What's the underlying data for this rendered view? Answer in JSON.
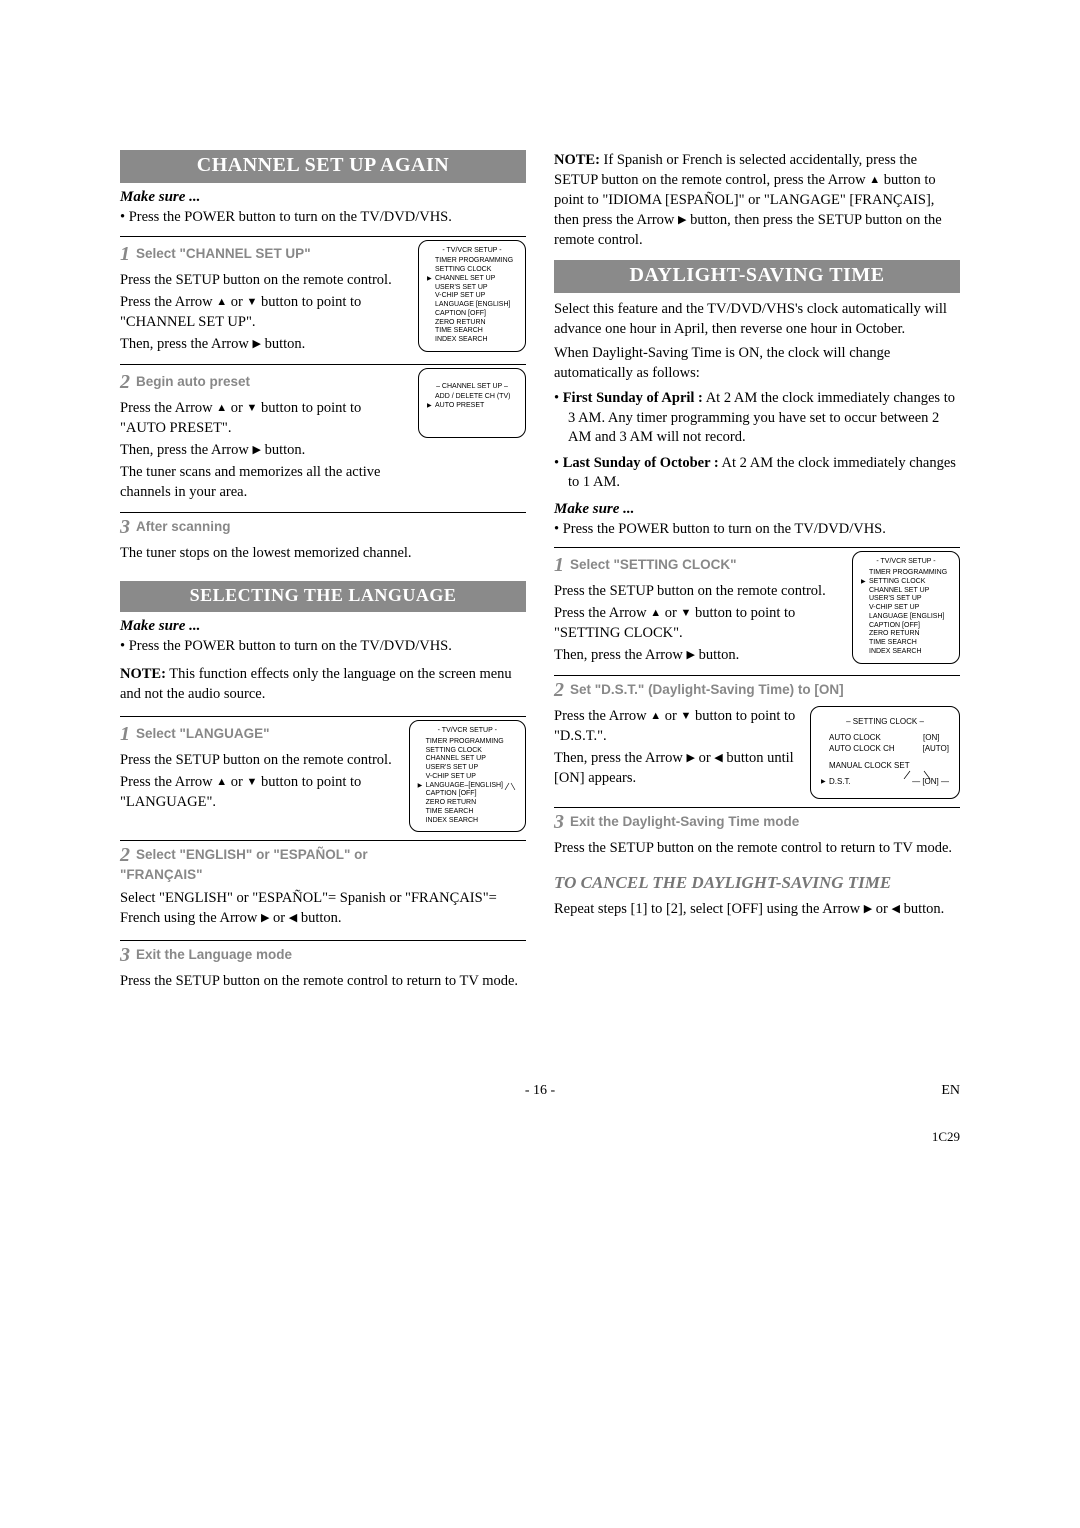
{
  "footer": {
    "pageNumber": "- 16 -",
    "lang": "EN",
    "code": "1C29"
  },
  "left": {
    "channelSetUp": {
      "header": "CHANNEL SET UP AGAIN",
      "makeSure": "Make sure ...",
      "bullet1": "Press the POWER button to turn on the TV/DVD/VHS.",
      "step1": {
        "num": "1",
        "title": "Select \"CHANNEL SET UP\"",
        "p1": "Press the SETUP button on the remote control.",
        "p2a": "Press the Arrow ",
        "p2b": " or ",
        "p2c": " button to point to \"CHANNEL SET UP\".",
        "p3a": "Then, press the Arrow ",
        "p3b": " button.",
        "menu": {
          "title": "- TV/VCR SETUP -",
          "items": [
            "TIMER PROGRAMMING",
            "SETTING CLOCK",
            "CHANNEL SET UP",
            "USER'S SET UP",
            "V-CHIP SET UP",
            "LANGUAGE   [ENGLISH]",
            "CAPTION   [OFF]",
            "ZERO RETURN",
            "TIME SEARCH",
            "INDEX SEARCH"
          ],
          "ptrIndex": 2
        }
      },
      "step2": {
        "num": "2",
        "title": "Begin auto preset",
        "p1a": "Press the Arrow ",
        "p1b": " or ",
        "p1c": " button to point to \"AUTO PRESET\".",
        "p2a": "Then, press the Arrow ",
        "p2b": " button.",
        "p3": "The tuner scans and memorizes all the active channels in your area.",
        "menu": {
          "title": "– CHANNEL SET UP –",
          "items": [
            "ADD / DELETE CH (TV)",
            "AUTO PRESET"
          ],
          "ptrIndex": 1
        }
      },
      "step3": {
        "num": "3",
        "title": "After scanning",
        "p1": "The tuner stops on the lowest memorized channel."
      }
    },
    "language": {
      "header": "SELECTING THE LANGUAGE",
      "makeSure": "Make sure ...",
      "bullet1": "Press the POWER button to turn on the TV/DVD/VHS.",
      "noteLabel": "NOTE:",
      "noteText": " This function effects only the language on the screen menu and not the audio source.",
      "step1": {
        "num": "1",
        "title": "Select \"LANGUAGE\"",
        "p1": "Press the SETUP button on the remote control.",
        "p2a": "Press the Arrow ",
        "p2b": " or ",
        "p2c": " button to point to \"LANGUAGE\".",
        "menu": {
          "title": "- TV/VCR SETUP -",
          "items": [
            "TIMER PROGRAMMING",
            "SETTING CLOCK",
            "CHANNEL SET UP",
            "USER'S SET UP",
            "V-CHIP SET UP",
            "LANGUAGE–[ENGLISH]",
            "CAPTION   [OFF]",
            "ZERO RETURN",
            "TIME SEARCH",
            "INDEX SEARCH"
          ],
          "ptrIndex": 5,
          "langRow": true
        }
      },
      "step2": {
        "num": "2",
        "title": "Select \"ENGLISH\" or \"ESPAÑOL\" or \"FRANÇAIS\"",
        "p1a": "Select \"ENGLISH\" or \"ESPAÑOL\"= Spanish or \"FRANÇAIS\"= French using the Arrow ",
        "p1b": " or ",
        "p1c": " button."
      },
      "step3": {
        "num": "3",
        "title": "Exit the Language mode",
        "p1": "Press the SETUP button on the remote control to return to TV mode."
      }
    }
  },
  "right": {
    "topNoteLabel": "NOTE:",
    "topNote": " If Spanish or French is selected accidentally, press the SETUP button on the remote control, press the Arrow ",
    "topNote2": " button to point to \"IDIOMA [ESPAÑOL]\" or \"LANGAGE\" [FRANÇAIS], then press the Arrow ",
    "topNote3": " button, then press the SETUP button on the remote control.",
    "dst": {
      "header": "DAYLIGHT-SAVING TIME",
      "p1": "Select this feature and the TV/DVD/VHS's clock automatically will advance one hour in April, then reverse one hour in October.",
      "p2": "When Daylight-Saving Time is ON, the clock will change automatically as follows:",
      "b1Label": "First Sunday of April :",
      "b1": " At 2 AM the clock immediately changes to 3 AM. Any timer programming you have set to occur between 2 AM and 3 AM will not record.",
      "b2Label": "Last Sunday of October :",
      "b2": " At 2 AM the clock immediately changes to 1 AM.",
      "makeSure": "Make sure ...",
      "bullet1": "Press the POWER button to turn on the TV/DVD/VHS.",
      "step1": {
        "num": "1",
        "title": "Select \"SETTING CLOCK\"",
        "p1": "Press the SETUP button on the remote control.",
        "p2a": "Press the Arrow ",
        "p2b": " or ",
        "p2c": " button to point to \"SETTING CLOCK\".",
        "p3a": "Then, press the Arrow ",
        "p3b": " button.",
        "menu": {
          "title": "- TV/VCR SETUP -",
          "items": [
            "TIMER PROGRAMMING",
            "SETTING CLOCK",
            "CHANNEL SET UP",
            "USER'S SET UP",
            "V-CHIP SET UP",
            "LANGUAGE   [ENGLISH]",
            "CAPTION   [OFF]",
            "ZERO RETURN",
            "TIME SEARCH",
            "INDEX SEARCH"
          ],
          "ptrIndex": 1
        }
      },
      "step2": {
        "num": "2",
        "title": "Set \"D.S.T.\" (Daylight-Saving Time) to [ON]",
        "p1a": "Press the Arrow ",
        "p1b": " or ",
        "p1c": " button to point to \"D.S.T.\".",
        "p2a": "Then, press the Arrow ",
        "p2b": " or ",
        "p2c": " button until [ON] appears.",
        "menu": {
          "title": "– SETTING CLOCK –",
          "r1l": "AUTO CLOCK",
          "r1v": "[ON]",
          "r2l": "AUTO CLOCK CH",
          "r2v": "[AUTO]",
          "r3l": "MANUAL CLOCK SET",
          "r4l": "D.S.T.",
          "r4v": "[ON]"
        }
      },
      "step3": {
        "num": "3",
        "title": "Exit the Daylight-Saving Time mode",
        "p1": "Press the SETUP button on the remote control to return to TV mode."
      },
      "cancelHeader": "TO CANCEL THE DAYLIGHT-SAVING TIME",
      "cancelP1a": "Repeat steps [1] to [2], select [OFF] using the Arrow ",
      "cancelP1b": " or ",
      "cancelP1c": " button."
    }
  }
}
